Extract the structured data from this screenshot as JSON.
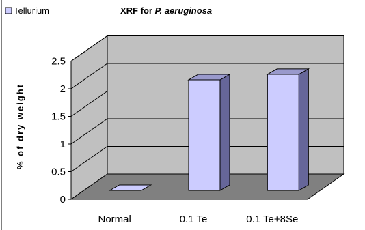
{
  "chart_data": {
    "type": "bar",
    "title": "XRF for",
    "title_italic": "P. aeruginosa",
    "ylabel": "% of dry weight",
    "xlabel": "",
    "categories": [
      "Normal",
      "0.1 Te",
      "0.1 Te+8Se"
    ],
    "series": [
      {
        "name": "Tellurium",
        "values": [
          0.0,
          2.0,
          2.1
        ]
      }
    ],
    "ylim": [
      0,
      2.5
    ],
    "yticks": [
      "0",
      "0.5",
      "1",
      "1.5",
      "2",
      "2.5"
    ],
    "ytick_values": [
      0,
      0.5,
      1,
      1.5,
      2,
      2.5
    ],
    "grid": true,
    "legend_placement": "top-left",
    "three_d": true,
    "colors": {
      "bar_front": "#ccccff",
      "bar_side": "#666699",
      "bar_top": "#9999cc",
      "wall": "#c0c0c0",
      "floor": "#808080",
      "grid": "#000000",
      "legend_swatch": "#ccccff"
    }
  }
}
